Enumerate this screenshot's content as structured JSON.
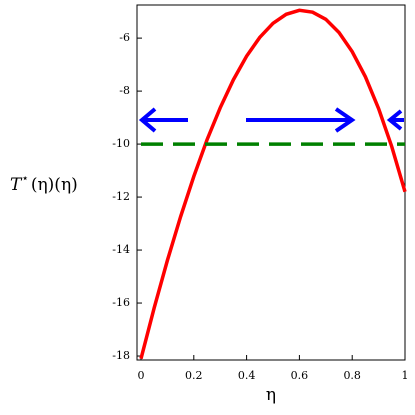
{
  "chart_data": {
    "type": "line",
    "x_label": "η",
    "y_label": {
      "symbol": "T",
      "superscript": "⋆",
      "args": "(η)(η)"
    },
    "x": [
      0,
      0.05,
      0.1,
      0.15,
      0.2,
      0.25,
      0.3,
      0.35,
      0.4,
      0.45,
      0.5,
      0.55,
      0.6,
      0.65,
      0.7,
      0.75,
      0.8,
      0.85,
      0.9,
      0.95,
      1
    ],
    "series": [
      {
        "color": "#ff0000",
        "style": "solid",
        "values": [
          -18.1,
          -16.18,
          -14.39,
          -12.74,
          -11.22,
          -9.84,
          -8.63,
          -7.57,
          -6.68,
          -5.97,
          -5.44,
          -5.1,
          -4.95,
          -5.02,
          -5.29,
          -5.79,
          -6.51,
          -7.46,
          -8.66,
          -10.1,
          -11.8
        ]
      },
      {
        "color": "#008000",
        "style": "dashed",
        "values": [
          -10,
          -10,
          -10,
          -10,
          -10,
          -10,
          -10,
          -10,
          -10,
          -10,
          -10,
          -10,
          -10,
          -10,
          -10,
          -10,
          -10,
          -10,
          -10,
          -10,
          -10
        ]
      }
    ],
    "xlim": [
      0,
      1
    ],
    "ylim": [
      -18.15,
      -4.75
    ],
    "xticks": [
      0,
      0.2,
      0.4,
      0.6,
      0.8,
      1
    ],
    "yticks": [
      -18,
      -16,
      -14,
      -12,
      -10,
      -8,
      -6
    ],
    "grid": false
  }
}
